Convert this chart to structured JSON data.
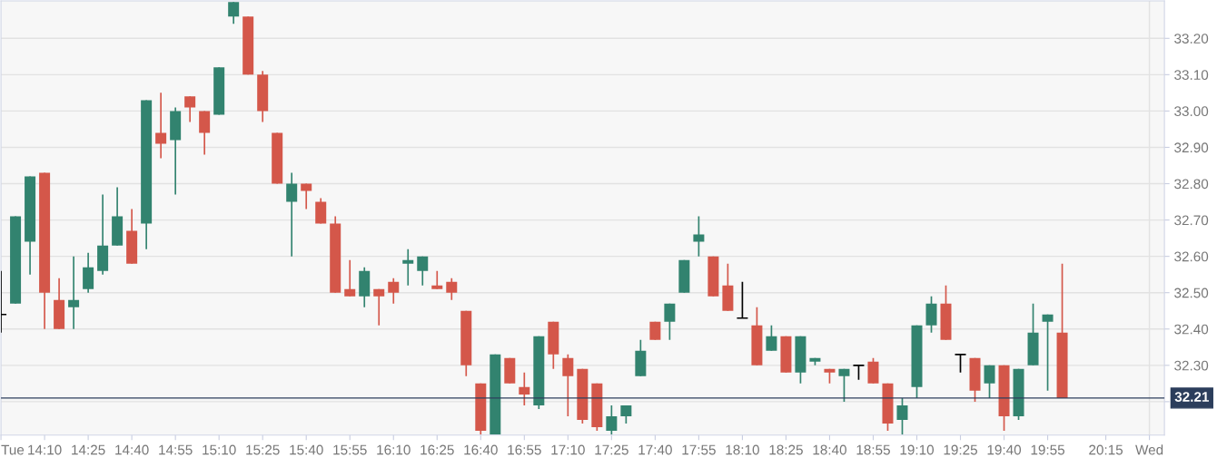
{
  "chart_data": {
    "type": "candlestick",
    "x": [
      13.9167,
      14.0,
      14.0833,
      14.1667,
      14.25,
      14.3333,
      14.4167,
      14.5,
      14.5833,
      14.6667,
      14.75,
      14.8333,
      14.9167,
      15.0,
      15.0833,
      15.1667,
      15.25,
      15.3333,
      15.4167,
      15.5,
      15.5833,
      15.6667,
      15.75,
      15.8333,
      15.9167,
      16.0,
      16.0833,
      16.1667,
      16.25,
      16.3333,
      16.4167,
      16.5,
      16.5833,
      16.6667,
      16.75,
      16.8333,
      16.9167,
      17.0,
      17.0833,
      17.1667,
      17.25,
      17.3333,
      17.4167,
      17.5,
      17.5833,
      17.6667,
      17.75,
      17.8333,
      17.9167,
      18.0,
      18.0833,
      18.1667,
      18.25,
      18.3333,
      18.4167,
      18.5,
      18.5833,
      18.6667,
      18.75,
      18.8333,
      18.9167,
      19.0,
      19.0833,
      19.1667,
      19.25,
      19.3333,
      19.4167,
      19.5,
      19.5833,
      19.6667,
      19.75,
      19.8333,
      19.9167,
      20.0
    ],
    "ohlc": [
      [
        32.44,
        32.56,
        32.39,
        32.44
      ],
      [
        32.47,
        32.71,
        32.47,
        32.71
      ],
      [
        32.64,
        32.82,
        32.55,
        32.82
      ],
      [
        32.83,
        32.83,
        32.4,
        32.5
      ],
      [
        32.48,
        32.54,
        32.4,
        32.4
      ],
      [
        32.46,
        32.6,
        32.4,
        32.48
      ],
      [
        32.51,
        32.61,
        32.5,
        32.57
      ],
      [
        32.56,
        32.77,
        32.55,
        32.63
      ],
      [
        32.63,
        32.79,
        32.63,
        32.71
      ],
      [
        32.67,
        32.73,
        32.58,
        32.58
      ],
      [
        32.69,
        33.03,
        32.62,
        33.03
      ],
      [
        32.94,
        33.05,
        32.87,
        32.91
      ],
      [
        32.92,
        33.01,
        32.77,
        33.0
      ],
      [
        33.04,
        33.04,
        32.97,
        33.01
      ],
      [
        33.0,
        33.0,
        32.88,
        32.94
      ],
      [
        32.99,
        33.12,
        32.99,
        33.12
      ],
      [
        33.26,
        33.3,
        33.24,
        33.3
      ],
      [
        33.26,
        33.26,
        33.1,
        33.1
      ],
      [
        33.1,
        33.11,
        32.97,
        33.0
      ],
      [
        32.94,
        32.94,
        32.8,
        32.8
      ],
      [
        32.75,
        32.83,
        32.6,
        32.8
      ],
      [
        32.8,
        32.8,
        32.73,
        32.78
      ],
      [
        32.75,
        32.76,
        32.69,
        32.69
      ],
      [
        32.69,
        32.71,
        32.5,
        32.5
      ],
      [
        32.51,
        32.59,
        32.49,
        32.49
      ],
      [
        32.49,
        32.57,
        32.46,
        32.56
      ],
      [
        32.51,
        32.51,
        32.41,
        32.49
      ],
      [
        32.53,
        32.54,
        32.47,
        32.5
      ],
      [
        32.58,
        32.62,
        32.52,
        32.59
      ],
      [
        32.56,
        32.6,
        32.52,
        32.6
      ],
      [
        32.52,
        32.56,
        32.51,
        32.51
      ],
      [
        32.53,
        32.54,
        32.48,
        32.5
      ],
      [
        32.45,
        32.45,
        32.27,
        32.3
      ],
      [
        32.25,
        32.25,
        32.11,
        32.12
      ],
      [
        32.11,
        32.33,
        32.11,
        32.33
      ],
      [
        32.32,
        32.32,
        32.25,
        32.25
      ],
      [
        32.24,
        32.28,
        32.19,
        32.22
      ],
      [
        32.19,
        32.38,
        32.18,
        32.38
      ],
      [
        32.42,
        32.42,
        32.29,
        32.33
      ],
      [
        32.32,
        32.33,
        32.16,
        32.27
      ],
      [
        32.29,
        32.29,
        32.14,
        32.15
      ],
      [
        32.25,
        32.25,
        32.12,
        32.13
      ],
      [
        32.12,
        32.19,
        32.11,
        32.16
      ],
      [
        32.16,
        32.19,
        32.14,
        32.19
      ],
      [
        32.27,
        32.37,
        32.27,
        32.34
      ],
      [
        32.42,
        32.42,
        32.37,
        32.37
      ],
      [
        32.42,
        32.47,
        32.37,
        32.47
      ],
      [
        32.5,
        32.59,
        32.5,
        32.59
      ],
      [
        32.64,
        32.71,
        32.6,
        32.66
      ],
      [
        32.6,
        32.6,
        32.49,
        32.49
      ],
      [
        32.52,
        32.58,
        32.45,
        32.45
      ],
      [
        32.43,
        32.53,
        32.43,
        32.43
      ],
      [
        32.41,
        32.46,
        32.3,
        32.3
      ],
      [
        32.34,
        32.41,
        32.34,
        32.38
      ],
      [
        32.38,
        32.38,
        32.28,
        32.28
      ],
      [
        32.28,
        32.38,
        32.25,
        32.38
      ],
      [
        32.31,
        32.32,
        32.3,
        32.32
      ],
      [
        32.29,
        32.29,
        32.25,
        32.28
      ],
      [
        32.27,
        32.29,
        32.2,
        32.29
      ],
      [
        32.3,
        32.3,
        32.26,
        32.3
      ],
      [
        32.31,
        32.32,
        32.25,
        32.25
      ],
      [
        32.25,
        32.25,
        32.12,
        32.14
      ],
      [
        32.15,
        32.21,
        32.11,
        32.19
      ],
      [
        32.24,
        32.41,
        32.21,
        32.41
      ],
      [
        32.41,
        32.49,
        32.39,
        32.47
      ],
      [
        32.47,
        32.52,
        32.37,
        32.37
      ],
      [
        32.33,
        32.33,
        32.28,
        32.33
      ],
      [
        32.32,
        32.32,
        32.2,
        32.23
      ],
      [
        32.25,
        32.3,
        32.21,
        32.3
      ],
      [
        32.3,
        32.3,
        32.12,
        32.16
      ],
      [
        32.16,
        32.29,
        32.15,
        32.29
      ],
      [
        32.3,
        32.47,
        32.3,
        32.39
      ],
      [
        32.42,
        32.44,
        32.23,
        32.44
      ],
      [
        32.39,
        32.58,
        32.21,
        32.21
      ]
    ],
    "colors": [
      "#000000",
      "#32836f",
      "#32836f",
      "#d4574a",
      "#d4574a",
      "#32836f",
      "#32836f",
      "#32836f",
      "#32836f",
      "#d4574a",
      "#32836f",
      "#d4574a",
      "#32836f",
      "#d4574a",
      "#d4574a",
      "#32836f",
      "#32836f",
      "#d4574a",
      "#d4574a",
      "#d4574a",
      "#32836f",
      "#d4574a",
      "#d4574a",
      "#d4574a",
      "#d4574a",
      "#32836f",
      "#d4574a",
      "#d4574a",
      "#32836f",
      "#32836f",
      "#d4574a",
      "#d4574a",
      "#d4574a",
      "#d4574a",
      "#32836f",
      "#d4574a",
      "#d4574a",
      "#32836f",
      "#d4574a",
      "#d4574a",
      "#d4574a",
      "#d4574a",
      "#32836f",
      "#32836f",
      "#32836f",
      "#d4574a",
      "#32836f",
      "#32836f",
      "#32836f",
      "#d4574a",
      "#d4574a",
      "#000000",
      "#d4574a",
      "#32836f",
      "#d4574a",
      "#32836f",
      "#32836f",
      "#d4574a",
      "#32836f",
      "#000000",
      "#d4574a",
      "#d4574a",
      "#32836f",
      "#32836f",
      "#32836f",
      "#d4574a",
      "#000000",
      "#d4574a",
      "#32836f",
      "#d4574a",
      "#32836f",
      "#32836f",
      "#32836f",
      "#d4574a"
    ],
    "xlim": [
      13.9167,
      20.586
    ],
    "xticks": [
      {
        "value": 13.9167,
        "label": "Tue"
      },
      {
        "value": 14.1667,
        "label": "14:10"
      },
      {
        "value": 14.4167,
        "label": "14:25"
      },
      {
        "value": 14.6667,
        "label": "14:40"
      },
      {
        "value": 14.9167,
        "label": "14:55"
      },
      {
        "value": 15.1667,
        "label": "15:10"
      },
      {
        "value": 15.4167,
        "label": "15:25"
      },
      {
        "value": 15.6667,
        "label": "15:40"
      },
      {
        "value": 15.9167,
        "label": "15:55"
      },
      {
        "value": 16.1667,
        "label": "16:10"
      },
      {
        "value": 16.4167,
        "label": "16:25"
      },
      {
        "value": 16.6667,
        "label": "16:40"
      },
      {
        "value": 16.9167,
        "label": "16:55"
      },
      {
        "value": 17.1667,
        "label": "17:10"
      },
      {
        "value": 17.4167,
        "label": "17:25"
      },
      {
        "value": 17.6667,
        "label": "17:40"
      },
      {
        "value": 17.9167,
        "label": "17:55"
      },
      {
        "value": 18.1667,
        "label": "18:10"
      },
      {
        "value": 18.4167,
        "label": "18:25"
      },
      {
        "value": 18.6667,
        "label": "18:40"
      },
      {
        "value": 18.9167,
        "label": "18:55"
      },
      {
        "value": 19.1667,
        "label": "19:10"
      },
      {
        "value": 19.4167,
        "label": "19:25"
      },
      {
        "value": 19.6667,
        "label": "19:40"
      },
      {
        "value": 19.9167,
        "label": "19:55"
      },
      {
        "value": 20.25,
        "label": "20:15"
      },
      {
        "value": 20.5,
        "label": "Wed"
      }
    ],
    "ylim": [
      32.108,
      33.303
    ],
    "yticks": [
      {
        "value": 32.2,
        "label": null
      },
      {
        "value": 32.3,
        "label": "32.30"
      },
      {
        "value": 32.4,
        "label": "32.40"
      },
      {
        "value": 32.5,
        "label": "32.50"
      },
      {
        "value": 32.6,
        "label": "32.60"
      },
      {
        "value": 32.7,
        "label": "32.70"
      },
      {
        "value": 32.8,
        "label": "32.80"
      },
      {
        "value": 32.9,
        "label": "32.90"
      },
      {
        "value": 33.0,
        "label": "33.00"
      },
      {
        "value": 33.1,
        "label": "33.10"
      },
      {
        "value": 33.2,
        "label": "33.20"
      }
    ],
    "grid": "y",
    "ref_lines": [
      {
        "axis": "y",
        "value": 32.21,
        "label": "32.21",
        "color": "#2c3e5c"
      },
      {
        "axis": "x",
        "value": 20.5,
        "color": "#e2e2e2"
      }
    ]
  }
}
